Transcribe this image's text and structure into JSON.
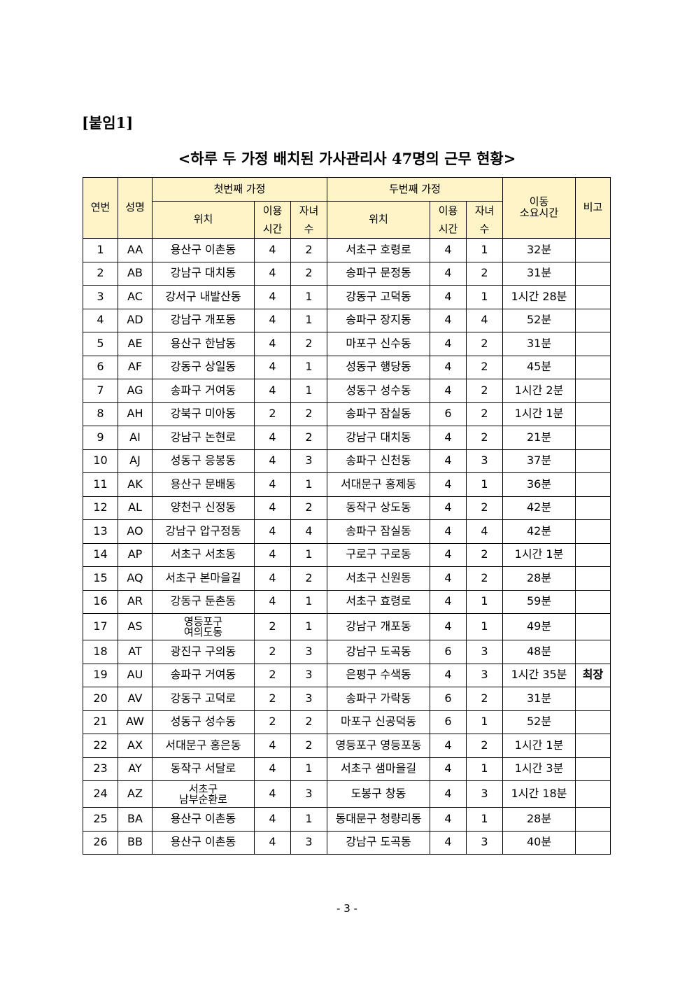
{
  "attachment_label": "[붙임1]",
  "title": "<하루 두 가정 배치된 가사관리사 47명의 근무 현황>",
  "headers": {
    "no": "연번",
    "name": "성명",
    "first_home": "첫번째 가정",
    "second_home": "두번째 가정",
    "location": "위치",
    "hours_line1": "이용",
    "hours_line2": "시간",
    "children_line1": "자녀",
    "children_line2": "수",
    "travel_line1": "이동",
    "travel_line2": "소요시간",
    "note": "비고"
  },
  "rows": [
    [
      "1",
      "AA",
      "용산구 이촌동",
      "4",
      "2",
      "서초구 호령로",
      "4",
      "1",
      "32분",
      ""
    ],
    [
      "2",
      "AB",
      "강남구 대치동",
      "4",
      "2",
      "송파구 문정동",
      "4",
      "2",
      "31분",
      ""
    ],
    [
      "3",
      "AC",
      "강서구 내발산동",
      "4",
      "1",
      "강동구 고덕동",
      "4",
      "1",
      "1시간 28분",
      ""
    ],
    [
      "4",
      "AD",
      "강남구 개포동",
      "4",
      "1",
      "송파구 장지동",
      "4",
      "4",
      "52분",
      ""
    ],
    [
      "5",
      "AE",
      "용산구 한남동",
      "4",
      "2",
      "마포구 신수동",
      "4",
      "2",
      "31분",
      ""
    ],
    [
      "6",
      "AF",
      "강동구 상일동",
      "4",
      "1",
      "성동구 행당동",
      "4",
      "2",
      "45분",
      ""
    ],
    [
      "7",
      "AG",
      "송파구 거여동",
      "4",
      "1",
      "성동구 성수동",
      "4",
      "2",
      "1시간 2분",
      ""
    ],
    [
      "8",
      "AH",
      "강북구 미아동",
      "2",
      "2",
      "송파구 잠실동",
      "6",
      "2",
      "1시간 1분",
      ""
    ],
    [
      "9",
      "AI",
      "강남구 논현로",
      "4",
      "2",
      "강남구 대치동",
      "4",
      "2",
      "21분",
      ""
    ],
    [
      "10",
      "AJ",
      "성동구 응봉동",
      "4",
      "3",
      "송파구 신천동",
      "4",
      "3",
      "37분",
      ""
    ],
    [
      "11",
      "AK",
      "용산구 문배동",
      "4",
      "1",
      "서대문구 홍제동",
      "4",
      "1",
      "36분",
      ""
    ],
    [
      "12",
      "AL",
      "양천구 신정동",
      "4",
      "2",
      "동작구 상도동",
      "4",
      "2",
      "42분",
      ""
    ],
    [
      "13",
      "AO",
      "강남구 압구정동",
      "4",
      "4",
      "송파구 잠실동",
      "4",
      "4",
      "42분",
      ""
    ],
    [
      "14",
      "AP",
      "서초구 서초동",
      "4",
      "1",
      "구로구 구로동",
      "4",
      "2",
      "1시간 1분",
      ""
    ],
    [
      "15",
      "AQ",
      "서초구 본마을길",
      "4",
      "2",
      "서초구 신원동",
      "4",
      "2",
      "28분",
      ""
    ],
    [
      "16",
      "AR",
      "강동구 둔촌동",
      "4",
      "1",
      "서초구 효령로",
      "4",
      "1",
      "59분",
      ""
    ],
    [
      "17",
      "AS",
      "영등포구\n여의도동",
      "2",
      "1",
      "강남구 개포동",
      "4",
      "1",
      "49분",
      ""
    ],
    [
      "18",
      "AT",
      "광진구 구의동",
      "2",
      "3",
      "강남구 도곡동",
      "6",
      "3",
      "48분",
      ""
    ],
    [
      "19",
      "AU",
      "송파구 거여동",
      "2",
      "3",
      "은평구 수색동",
      "4",
      "3",
      "1시간 35분",
      "최장"
    ],
    [
      "20",
      "AV",
      "강동구 고덕로",
      "2",
      "3",
      "송파구 가락동",
      "6",
      "2",
      "31분",
      ""
    ],
    [
      "21",
      "AW",
      "성동구 성수동",
      "2",
      "2",
      "마포구 신공덕동",
      "6",
      "1",
      "52분",
      ""
    ],
    [
      "22",
      "AX",
      "서대문구 홍은동",
      "4",
      "2",
      "영등포구 영등포동",
      "4",
      "2",
      "1시간 1분",
      ""
    ],
    [
      "23",
      "AY",
      "동작구 서달로",
      "4",
      "1",
      "서초구 샘마을길",
      "4",
      "1",
      "1시간 3분",
      ""
    ],
    [
      "24",
      "AZ",
      "서초구\n남부순환로",
      "4",
      "3",
      "도봉구 창동",
      "4",
      "3",
      "1시간 18분",
      ""
    ],
    [
      "25",
      "BA",
      "용산구 이촌동",
      "4",
      "1",
      "동대문구 청량리동",
      "4",
      "1",
      "28분",
      ""
    ],
    [
      "26",
      "BB",
      "용산구 이촌동",
      "4",
      "3",
      "강남구 도곡동",
      "4",
      "3",
      "40분",
      ""
    ]
  ],
  "page_number": "- 3 -",
  "colors": {
    "header_bg": "#fef4c8"
  }
}
